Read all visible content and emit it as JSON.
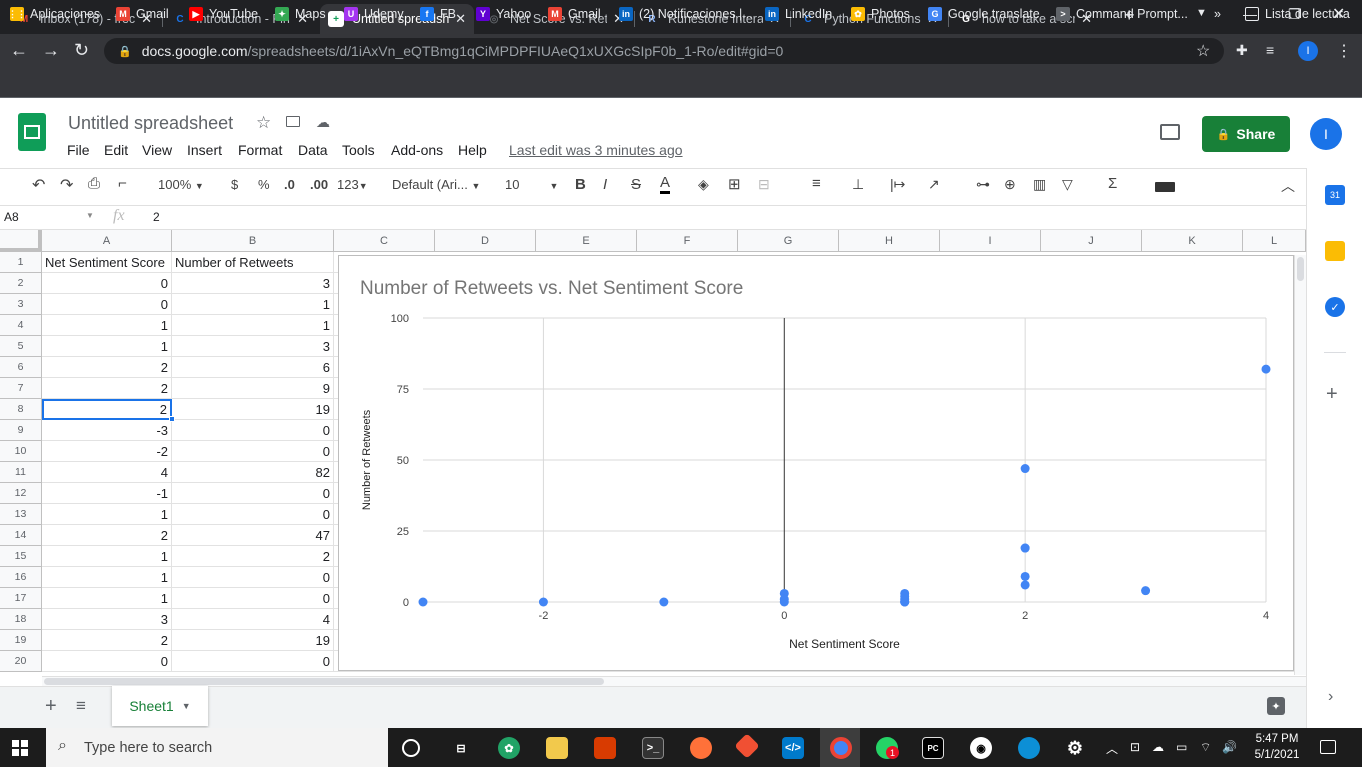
{
  "browser": {
    "tabs": [
      {
        "title": "Inbox (178) - frec",
        "icon": "gmail-icon",
        "fav": "M",
        "favColor": "#ea4335"
      },
      {
        "title": "Introduction - Fin",
        "icon": "c-site-icon",
        "fav": "C",
        "favColor": "#1a73e8"
      },
      {
        "title": "Untitled spreadsh",
        "icon": "sheets-icon",
        "fav": "+",
        "favColor": "#0f9d58"
      },
      {
        "title": "Net Score vs. Ret",
        "icon": "web-icon",
        "fav": "◎",
        "favColor": "#5f6368"
      },
      {
        "title": "Runestone Interac",
        "icon": "runestone-icon",
        "fav": "R",
        "favColor": "#8ab4f8"
      },
      {
        "title": "Python Functions",
        "icon": "c-site-icon",
        "fav": "C",
        "favColor": "#1a73e8"
      },
      {
        "title": "how to take a scr",
        "icon": "google-icon",
        "fav": "G",
        "favColor": "#ffffff"
      }
    ],
    "url_host": "docs.google.com",
    "url_path": "/spreadsheets/d/1iAxVn_eQTBmg1qCiMPDPFIUAeQ1xUXGcSIpF0b_1-Ro/edit#gid=0",
    "bookmarks": [
      {
        "label": "Aplicaciones",
        "icon": "apps-grid-icon",
        "color": "#fbbc04",
        "glyph": "⋮⋮"
      },
      {
        "label": "Gmail",
        "icon": "gmail-icon",
        "color": "#ea4335",
        "glyph": "M"
      },
      {
        "label": "YouTube",
        "icon": "youtube-icon",
        "color": "#ff0000",
        "glyph": "▶"
      },
      {
        "label": "Maps",
        "icon": "maps-icon",
        "color": "#34a853",
        "glyph": "✦"
      },
      {
        "label": "Udemy",
        "icon": "udemy-icon",
        "color": "#a435f0",
        "glyph": "U"
      },
      {
        "label": "FB",
        "icon": "facebook-icon",
        "color": "#1877f2",
        "glyph": "f"
      },
      {
        "label": "Yahoo",
        "icon": "yahoo-icon",
        "color": "#6001d2",
        "glyph": "Y"
      },
      {
        "label": "Gmail",
        "icon": "gmail-icon",
        "color": "#ea4335",
        "glyph": "M"
      },
      {
        "label": "(2) Notificaciones |...",
        "icon": "linkedin-icon",
        "color": "#0a66c2",
        "glyph": "in"
      },
      {
        "label": "LinkedIn",
        "icon": "linkedin-icon",
        "color": "#0a66c2",
        "glyph": "in"
      },
      {
        "label": "Photos",
        "icon": "photos-icon",
        "color": "#fbbc04",
        "glyph": "✿"
      },
      {
        "label": "Google translate",
        "icon": "translate-icon",
        "color": "#4285f4",
        "glyph": "G"
      },
      {
        "label": "Command Prompt...",
        "icon": "terminal-icon",
        "color": "#5f6368",
        "glyph": ">"
      }
    ],
    "reading_list": "Lista de lectura"
  },
  "sheets": {
    "title": "Untitled spreadsheet",
    "menu": [
      "File",
      "Edit",
      "View",
      "Insert",
      "Format",
      "Data",
      "Tools",
      "Add-ons",
      "Help"
    ],
    "last_edit": "Last edit was 3 minutes ago",
    "share_label": "Share",
    "avatar_letter": "I",
    "toolbar": {
      "zoom": "100%",
      "currency": "$",
      "percent": "%",
      "dec_less": ".0",
      "dec_more": ".00",
      "format_more": "123",
      "font": "Default (Ari...",
      "font_size": "10",
      "bold": "B",
      "italic": "I",
      "strike": "S",
      "textcolor": "A"
    },
    "name_box": "A8",
    "formula_value": "2",
    "column_letters": [
      "A",
      "B",
      "C",
      "D",
      "E",
      "F",
      "G",
      "H",
      "I",
      "J",
      "K",
      "L"
    ],
    "rows": [
      [
        "Net Sentiment Score",
        "Number of Retweets"
      ],
      [
        "0",
        "3"
      ],
      [
        "0",
        "1"
      ],
      [
        "1",
        "1"
      ],
      [
        "1",
        "3"
      ],
      [
        "2",
        "6"
      ],
      [
        "2",
        "9"
      ],
      [
        "2",
        "19"
      ],
      [
        "-3",
        "0"
      ],
      [
        "-2",
        "0"
      ],
      [
        "4",
        "82"
      ],
      [
        "-1",
        "0"
      ],
      [
        "1",
        "0"
      ],
      [
        "2",
        "47"
      ],
      [
        "1",
        "2"
      ],
      [
        "1",
        "0"
      ],
      [
        "1",
        "0"
      ],
      [
        "3",
        "4"
      ],
      [
        "2",
        "19"
      ],
      [
        "0",
        "0"
      ]
    ],
    "sheet_tab": "Sheet1"
  },
  "chart_data": {
    "type": "scatter",
    "title": "Number of Retweets vs. Net Sentiment Score",
    "xlabel": "Net Sentiment Score",
    "ylabel": "Number of Retweets",
    "xlim": [
      -3,
      4
    ],
    "ylim": [
      0,
      100
    ],
    "xticks": [
      "-2",
      "0",
      "2",
      "4"
    ],
    "yticks": [
      "100",
      "75",
      "50",
      "25",
      "0"
    ],
    "grid": true,
    "color": "#4285f4",
    "points": [
      [
        0,
        3
      ],
      [
        0,
        1
      ],
      [
        1,
        1
      ],
      [
        1,
        3
      ],
      [
        2,
        6
      ],
      [
        2,
        9
      ],
      [
        2,
        19
      ],
      [
        -3,
        0
      ],
      [
        -2,
        0
      ],
      [
        4,
        82
      ],
      [
        -1,
        0
      ],
      [
        1,
        0
      ],
      [
        2,
        47
      ],
      [
        1,
        2
      ],
      [
        1,
        0
      ],
      [
        1,
        0
      ],
      [
        3,
        4
      ],
      [
        2,
        19
      ],
      [
        0,
        0
      ]
    ]
  },
  "taskbar": {
    "search_placeholder": "Type here to search",
    "time": "5:47 PM",
    "date": "5/1/2021",
    "whatsapp_badge": "1"
  }
}
